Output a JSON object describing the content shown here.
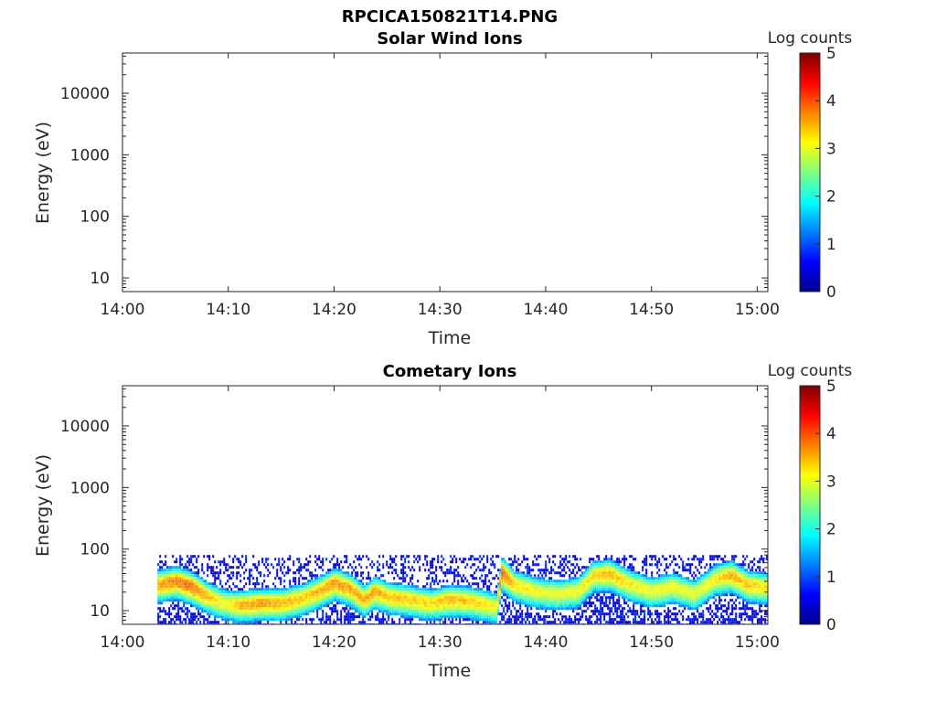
{
  "figure_title": "RPCICA150821T14.PNG",
  "colorscale": [
    "#00008f",
    "#0000ff",
    "#0080ff",
    "#00ffff",
    "#80ff80",
    "#ffff00",
    "#ff8000",
    "#ff0000",
    "#800000"
  ],
  "chart_data": [
    {
      "type": "heatmap",
      "title": "Solar Wind Ions",
      "xlabel": "Time",
      "ylabel": "Energy (eV)",
      "x_ticks": [
        "14:00",
        "14:10",
        "14:20",
        "14:30",
        "14:40",
        "14:50",
        "15:00"
      ],
      "x_range_minutes": [
        0,
        61
      ],
      "y_scale": "log",
      "y_range": [
        6,
        45000
      ],
      "y_ticks": [
        10,
        100,
        1000,
        10000
      ],
      "y_tick_labels": [
        "10",
        "100",
        "1000",
        "10000"
      ],
      "colorbar": {
        "label": "Log counts",
        "range": [
          0,
          5
        ],
        "ticks": [
          "0",
          "1",
          "2",
          "3",
          "4",
          "5"
        ]
      },
      "bands": []
    },
    {
      "type": "heatmap",
      "title": "Cometary Ions",
      "xlabel": "Time",
      "ylabel": "Energy (eV)",
      "x_ticks": [
        "14:00",
        "14:10",
        "14:20",
        "14:30",
        "14:40",
        "14:50",
        "15:00"
      ],
      "x_range_minutes": [
        0,
        61
      ],
      "y_scale": "log",
      "y_range": [
        6,
        45000
      ],
      "y_ticks": [
        10,
        100,
        1000,
        10000
      ],
      "y_tick_labels": [
        "10",
        "100",
        "1000",
        "10000"
      ],
      "colorbar": {
        "label": "Log counts",
        "range": [
          0,
          5
        ],
        "ticks": [
          "0",
          "1",
          "2",
          "3",
          "4",
          "5"
        ]
      },
      "data_start_minute": 3.3,
      "noise_upper_energy_ev": 80,
      "bands": [
        {
          "t": 3.5,
          "peak_ev": 28,
          "max_log": 3.6
        },
        {
          "t": 5.0,
          "peak_ev": 32,
          "max_log": 3.8
        },
        {
          "t": 6.5,
          "peak_ev": 26,
          "max_log": 3.9
        },
        {
          "t": 8.0,
          "peak_ev": 18,
          "max_log": 3.4
        },
        {
          "t": 9.5,
          "peak_ev": 14,
          "max_log": 3.1
        },
        {
          "t": 11.0,
          "peak_ev": 13,
          "max_log": 3.5
        },
        {
          "t": 13.0,
          "peak_ev": 14,
          "max_log": 3.6
        },
        {
          "t": 15.0,
          "peak_ev": 14,
          "max_log": 3.5
        },
        {
          "t": 17.0,
          "peak_ev": 17,
          "max_log": 3.4
        },
        {
          "t": 18.5,
          "peak_ev": 22,
          "max_log": 3.5
        },
        {
          "t": 20.0,
          "peak_ev": 30,
          "max_log": 3.7
        },
        {
          "t": 21.5,
          "peak_ev": 24,
          "max_log": 3.6
        },
        {
          "t": 22.8,
          "peak_ev": 16,
          "max_log": 3.5
        },
        {
          "t": 23.8,
          "peak_ev": 22,
          "max_log": 3.6
        },
        {
          "t": 25.0,
          "peak_ev": 18,
          "max_log": 3.4
        },
        {
          "t": 27.0,
          "peak_ev": 16,
          "max_log": 3.4
        },
        {
          "t": 29.0,
          "peak_ev": 14,
          "max_log": 3.3
        },
        {
          "t": 31.0,
          "peak_ev": 16,
          "max_log": 3.5
        },
        {
          "t": 33.0,
          "peak_ev": 15,
          "max_log": 3.4
        },
        {
          "t": 35.3,
          "peak_ev": 12,
          "max_log": 3.1
        },
        {
          "t": 35.8,
          "peak_ev": 45,
          "max_log": 4.0
        },
        {
          "t": 37.0,
          "peak_ev": 28,
          "max_log": 3.3
        },
        {
          "t": 39.0,
          "peak_ev": 22,
          "max_log": 3.1
        },
        {
          "t": 41.0,
          "peak_ev": 20,
          "max_log": 3.0
        },
        {
          "t": 43.0,
          "peak_ev": 22,
          "max_log": 3.1
        },
        {
          "t": 44.5,
          "peak_ev": 40,
          "max_log": 3.3
        },
        {
          "t": 46.0,
          "peak_ev": 42,
          "max_log": 3.5
        },
        {
          "t": 48.0,
          "peak_ev": 28,
          "max_log": 3.2
        },
        {
          "t": 50.0,
          "peak_ev": 22,
          "max_log": 3.1
        },
        {
          "t": 52.0,
          "peak_ev": 26,
          "max_log": 3.1
        },
        {
          "t": 54.0,
          "peak_ev": 20,
          "max_log": 3.0
        },
        {
          "t": 56.0,
          "peak_ev": 35,
          "max_log": 3.2
        },
        {
          "t": 57.5,
          "peak_ev": 40,
          "max_log": 3.5
        },
        {
          "t": 59.0,
          "peak_ev": 28,
          "max_log": 3.4
        },
        {
          "t": 61.0,
          "peak_ev": 25,
          "max_log": 3.2
        }
      ]
    }
  ]
}
